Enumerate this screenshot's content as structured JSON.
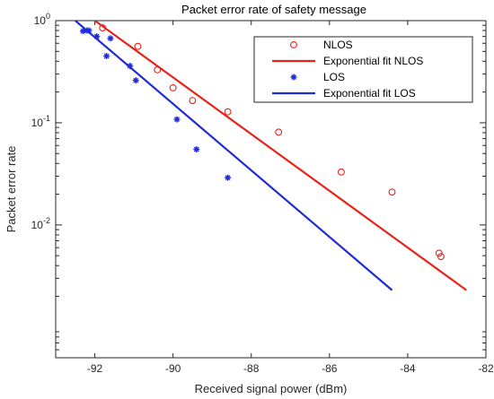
{
  "chart_data": {
    "type": "scatter",
    "title": "Packet error rate of safety message",
    "xlabel": "Received signal power (dBm)",
    "ylabel": "Packet error rate",
    "xlim": [
      -93,
      -82
    ],
    "ylim_log10": [
      -3.3,
      0
    ],
    "y_scale": "log",
    "x_ticks": [
      "-92",
      "-90",
      "-88",
      "-86",
      "-84",
      "-82"
    ],
    "x_tick_values": [
      -92,
      -90,
      -88,
      -86,
      -84,
      -82
    ],
    "y_ticks": [
      {
        "base": "10",
        "exp": "0",
        "log10": 0
      },
      {
        "base": "10",
        "exp": "-1",
        "log10": -1
      },
      {
        "base": "10",
        "exp": "-2",
        "log10": -2
      }
    ],
    "legend_placement": "top-right",
    "series": [
      {
        "name": "NLOS",
        "kind": "markers",
        "marker": "circle",
        "color": "#e8231a",
        "x": [
          -91.8,
          -90.9,
          -90.4,
          -90.0,
          -89.5,
          -88.6,
          -87.3,
          -85.7,
          -84.4,
          -83.2,
          -83.15
        ],
        "y": [
          0.85,
          0.56,
          0.33,
          0.22,
          0.165,
          0.128,
          0.081,
          0.033,
          0.021,
          0.0053,
          0.0049
        ]
      },
      {
        "name": "Exponential fit NLOS",
        "kind": "line",
        "color": "#e8231a",
        "x": [
          -92.0,
          -82.5
        ],
        "y": [
          1.0,
          0.0023
        ]
      },
      {
        "name": "LOS",
        "kind": "markers",
        "marker": "asterisk",
        "color": "#1f2bd6",
        "x": [
          -92.3,
          -92.2,
          -92.15,
          -91.95,
          -91.7,
          -91.6,
          -91.1,
          -90.95,
          -89.9,
          -89.4,
          -88.6
        ],
        "y": [
          0.79,
          0.8,
          0.8,
          0.7,
          0.45,
          0.67,
          0.36,
          0.26,
          0.108,
          0.055,
          0.029
        ]
      },
      {
        "name": "Exponential fit LOS",
        "kind": "line",
        "color": "#1f2bd6",
        "x": [
          -92.5,
          -84.4
        ],
        "y": [
          1.0,
          0.0023
        ]
      }
    ],
    "grid": false
  }
}
